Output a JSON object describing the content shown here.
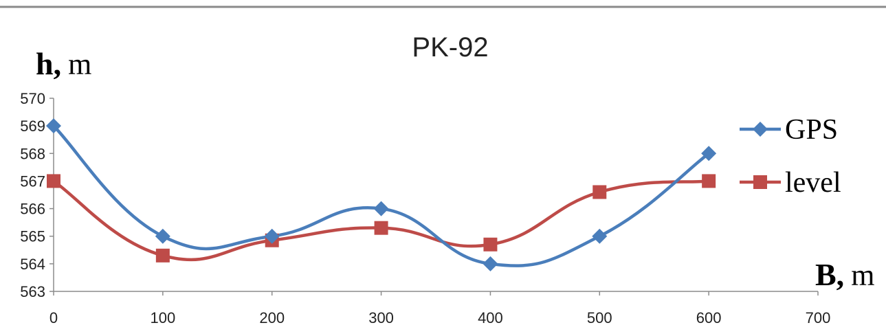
{
  "chart_data": {
    "type": "line",
    "title": "PK-92",
    "ylabel": {
      "var": "h,",
      "unit": "m"
    },
    "xlabel": {
      "var": "B,",
      "unit": "m"
    },
    "x": [
      0,
      100,
      200,
      300,
      400,
      500,
      600
    ],
    "xlim": [
      0,
      700
    ],
    "ylim": [
      563,
      570
    ],
    "xticks": [
      "0",
      "100",
      "200",
      "300",
      "400",
      "500",
      "600",
      "700"
    ],
    "yticks": [
      "563",
      "564",
      "565",
      "566",
      "567",
      "568",
      "569",
      "570"
    ],
    "grid": false,
    "legend": "right",
    "smooth": true,
    "series": [
      {
        "name": "GPS",
        "color": "#4a7ebb",
        "marker": "diamond",
        "values": [
          569,
          565,
          565,
          566,
          564,
          565,
          568
        ]
      },
      {
        "name": "level",
        "color": "#be4b48",
        "marker": "square",
        "values": [
          567,
          564.3,
          564.85,
          565.3,
          564.7,
          566.6,
          567
        ]
      }
    ]
  }
}
